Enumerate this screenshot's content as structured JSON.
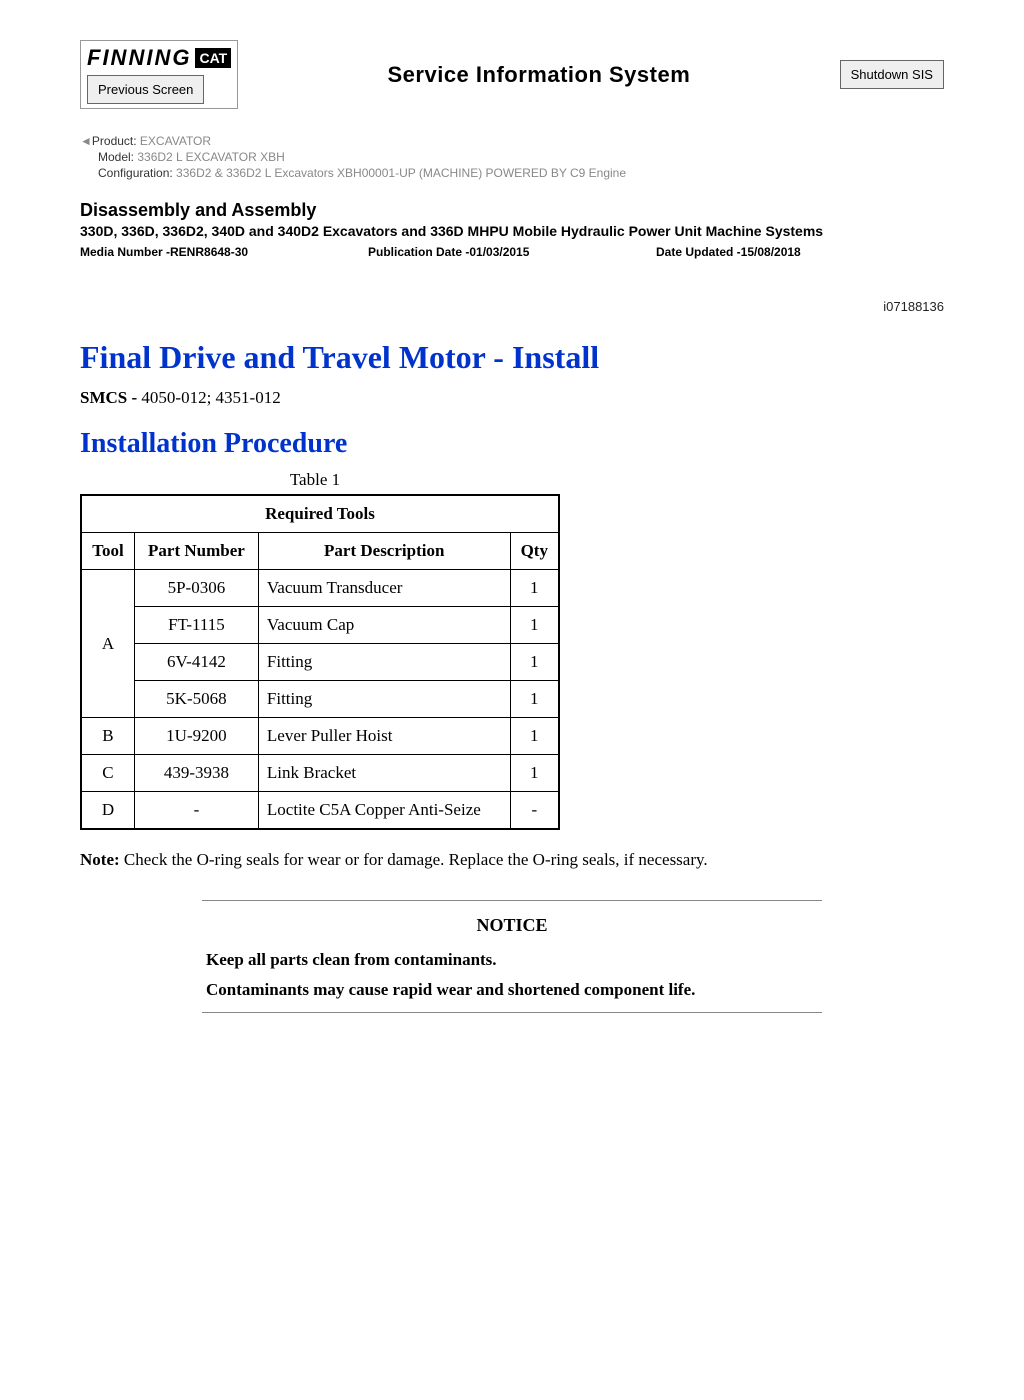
{
  "header": {
    "brand": "FINNING",
    "cat": "CAT",
    "prev_screen": "Previous Screen",
    "sis_title": "Service Information System",
    "shutdown": "Shutdown SIS"
  },
  "meta": {
    "product_label": "Product:",
    "product_value": "  EXCAVATOR",
    "model_label": "Model:",
    "model_value": "  336D2 L EXCAVATOR XBH",
    "config_label": "Configuration:",
    "config_value": " 336D2 & 336D2 L Excavators XBH00001-UP (MACHINE) POWERED BY C9 Engine"
  },
  "doc": {
    "section": "Disassembly and Assembly",
    "title": "330D, 336D, 336D2, 340D and 340D2 Excavators and 336D MHPU Mobile Hydraulic Power Unit Machine Systems",
    "media_number": "Media Number -RENR8648-30",
    "pub_date": "Publication Date -01/03/2015",
    "date_updated": "Date Updated -15/08/2018",
    "idnum": "i07188136"
  },
  "article": {
    "h1": "Final Drive and Travel Motor - Install",
    "smcs_label": "SMCS - ",
    "smcs_value": "4050-012; 4351-012",
    "h2": "Installation Procedure"
  },
  "table": {
    "caption": "Table 1",
    "header": "Required Tools",
    "col_tool": "Tool",
    "col_pn": "Part Number",
    "col_desc": "Part Description",
    "col_qty": "Qty",
    "rows": {
      "a": "A",
      "a0_pn": "5P-0306",
      "a0_desc": "Vacuum Transducer",
      "a0_qty": "1",
      "a1_pn": "FT-1115",
      "a1_desc": "Vacuum Cap",
      "a1_qty": "1",
      "a2_pn": "6V-4142",
      "a2_desc": "Fitting",
      "a2_qty": "1",
      "a3_pn": "5K-5068",
      "a3_desc": "Fitting",
      "a3_qty": "1",
      "b": "B",
      "b_pn": "1U-9200",
      "b_desc": "Lever Puller Hoist",
      "b_qty": "1",
      "c": "C",
      "c_pn": "439-3938",
      "c_desc": "Link Bracket",
      "c_qty": "1",
      "d": "D",
      "d_pn": "-",
      "d_desc": "Loctite C5A Copper Anti-Seize",
      "d_qty": "-"
    }
  },
  "note": {
    "label": "Note: ",
    "text": "Check the O-ring seals for wear or for damage. Replace the O-ring seals, if necessary."
  },
  "notice": {
    "label": "NOTICE",
    "line1": "Keep all parts clean from contaminants.",
    "line2": "Contaminants may cause rapid wear and shortened component life."
  }
}
